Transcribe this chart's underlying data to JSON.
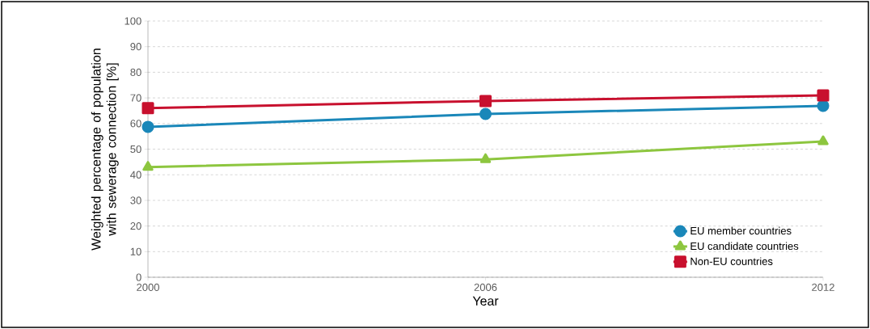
{
  "chart_data": {
    "type": "line",
    "xlabel": "Year",
    "ylabel": "Weighted percentage of population with sewerage connection [%]",
    "x": [
      2000,
      2006,
      2012
    ],
    "series": [
      {
        "name": "EU member countries",
        "color": "#1a87b9",
        "marker": "circle",
        "values": [
          58.7,
          63.7,
          66.9
        ]
      },
      {
        "name": "EU candidate countries",
        "color": "#8dc63f",
        "marker": "triangle",
        "values": [
          43,
          46,
          53
        ]
      },
      {
        "name": "Non-EU countries",
        "color": "#c8102e",
        "marker": "square",
        "values": [
          66,
          68.8,
          71
        ]
      }
    ],
    "xlim": [
      2000,
      2012
    ],
    "xticks": [
      2000,
      2006,
      2012
    ],
    "ylim": [
      0,
      100
    ],
    "yticks": [
      0,
      10,
      20,
      30,
      40,
      50,
      60,
      70,
      80,
      90,
      100
    ],
    "grid": "y",
    "legend": "bottom right",
    "line_style": "solid"
  }
}
